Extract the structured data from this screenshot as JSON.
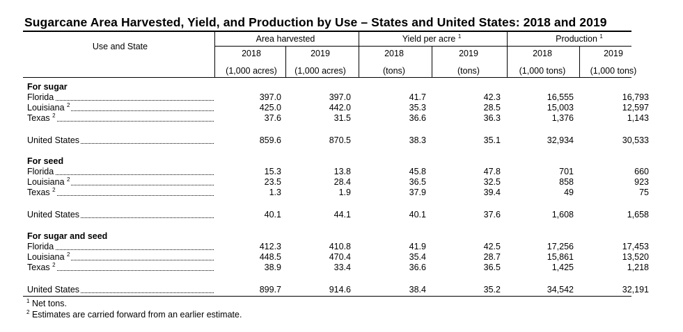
{
  "title": "Sugarcane Area Harvested, Yield, and Production by Use – States and United States: 2018 and 2019",
  "header": {
    "stub": "Use and State",
    "groups": [
      {
        "label": "Area harvested",
        "sup": ""
      },
      {
        "label": "Yield per acre",
        "sup": "1"
      },
      {
        "label": "Production",
        "sup": "1"
      }
    ],
    "years": [
      "2018",
      "2019",
      "2018",
      "2019",
      "2018",
      "2019"
    ],
    "units": [
      "(1,000 acres)",
      "(1,000 acres)",
      "(tons)",
      "(tons)",
      "(1,000 tons)",
      "(1,000 tons)"
    ]
  },
  "sections": [
    {
      "heading": "For sugar",
      "rows": [
        {
          "label": "Florida",
          "sup": "",
          "values": [
            "397.0",
            "397.0",
            "41.7",
            "42.3",
            "16,555",
            "16,793"
          ]
        },
        {
          "label": "Louisiana",
          "sup": "2",
          "values": [
            "425.0",
            "442.0",
            "35.3",
            "28.5",
            "15,003",
            "12,597"
          ]
        },
        {
          "label": "Texas",
          "sup": "2",
          "values": [
            "37.6",
            "31.5",
            "36.6",
            "36.3",
            "1,376",
            "1,143"
          ]
        }
      ],
      "total": {
        "label": "United States",
        "values": [
          "859.6",
          "870.5",
          "38.3",
          "35.1",
          "32,934",
          "30,533"
        ]
      }
    },
    {
      "heading": "For seed",
      "rows": [
        {
          "label": "Florida",
          "sup": "",
          "values": [
            "15.3",
            "13.8",
            "45.8",
            "47.8",
            "701",
            "660"
          ]
        },
        {
          "label": "Louisiana",
          "sup": "2",
          "values": [
            "23.5",
            "28.4",
            "36.5",
            "32.5",
            "858",
            "923"
          ]
        },
        {
          "label": "Texas",
          "sup": "2",
          "values": [
            "1.3",
            "1.9",
            "37.9",
            "39.4",
            "49",
            "75"
          ]
        }
      ],
      "total": {
        "label": "United States",
        "values": [
          "40.1",
          "44.1",
          "40.1",
          "37.6",
          "1,608",
          "1,658"
        ]
      }
    },
    {
      "heading": "For sugar and seed",
      "rows": [
        {
          "label": "Florida",
          "sup": "",
          "values": [
            "412.3",
            "410.8",
            "41.9",
            "42.5",
            "17,256",
            "17,453"
          ]
        },
        {
          "label": "Louisiana",
          "sup": "2",
          "values": [
            "448.5",
            "470.4",
            "35.4",
            "28.7",
            "15,861",
            "13,520"
          ]
        },
        {
          "label": "Texas",
          "sup": "2",
          "values": [
            "38.9",
            "33.4",
            "36.6",
            "36.5",
            "1,425",
            "1,218"
          ]
        }
      ],
      "total": {
        "label": "United States",
        "values": [
          "899.7",
          "914.6",
          "38.4",
          "35.2",
          "34,542",
          "32,191"
        ]
      }
    }
  ],
  "footnotes": [
    {
      "mark": "1",
      "text": "Net tons."
    },
    {
      "mark": "2",
      "text": "Estimates are carried forward from an earlier estimate."
    }
  ]
}
